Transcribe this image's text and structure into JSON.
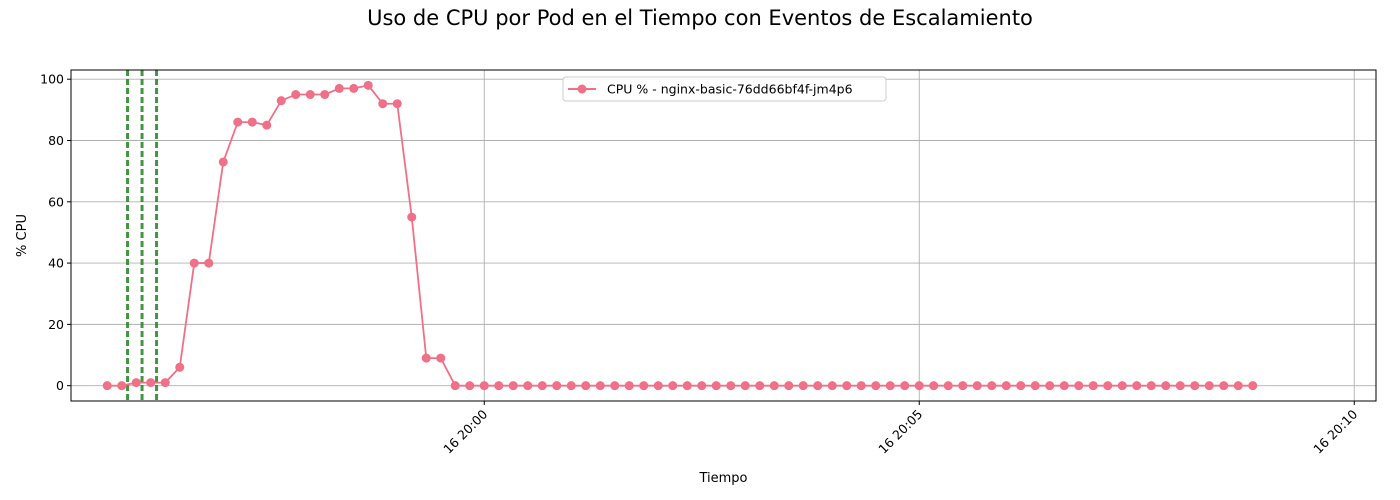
{
  "chart_data": {
    "type": "line",
    "title": "Uso de CPU por Pod en el Tiempo con Eventos de Escalamiento",
    "xlabel": "Tiempo",
    "ylabel": "% CPU",
    "x_axis": {
      "type": "time",
      "range": [
        "2024-??-16 19:55:15",
        "2024-??-16 20:10:15"
      ],
      "ticks": [
        {
          "time": "20:00",
          "label": "16 20:00"
        },
        {
          "time": "20:05",
          "label": "16 20:05"
        },
        {
          "time": "20:10",
          "label": "16 20:10"
        }
      ]
    },
    "ylim": [
      -5,
      103
    ],
    "yticks": [
      0,
      20,
      40,
      60,
      80,
      100
    ],
    "grid": true,
    "legend_position": "top-center",
    "series": [
      {
        "name": "CPU % - nginx-basic-76dd66bf4f-jm4p6",
        "color": "#f07088",
        "marker": "circle",
        "start_time": "19:55:40",
        "interval_seconds": 10,
        "values": [
          0,
          0,
          1,
          1,
          1,
          6,
          40,
          40,
          73,
          86,
          86,
          85,
          93,
          95,
          95,
          95,
          97,
          97,
          98,
          92,
          92,
          55,
          9,
          9,
          0,
          0,
          0,
          0,
          0,
          0,
          0,
          0,
          0,
          0,
          0,
          0,
          0,
          0,
          0,
          0,
          0,
          0,
          0,
          0,
          0,
          0,
          0,
          0,
          0,
          0,
          0,
          0,
          0,
          0,
          0,
          0,
          0,
          0,
          0,
          0,
          0,
          0,
          0,
          0,
          0,
          0,
          0,
          0,
          0,
          0,
          0,
          0,
          0,
          0,
          0,
          0,
          0,
          0,
          0,
          0
        ]
      }
    ],
    "scaling_events": {
      "color": "#2e8b2e",
      "style": "dashed",
      "times": [
        "19:55:54",
        "19:56:04",
        "19:56:14"
      ]
    }
  }
}
